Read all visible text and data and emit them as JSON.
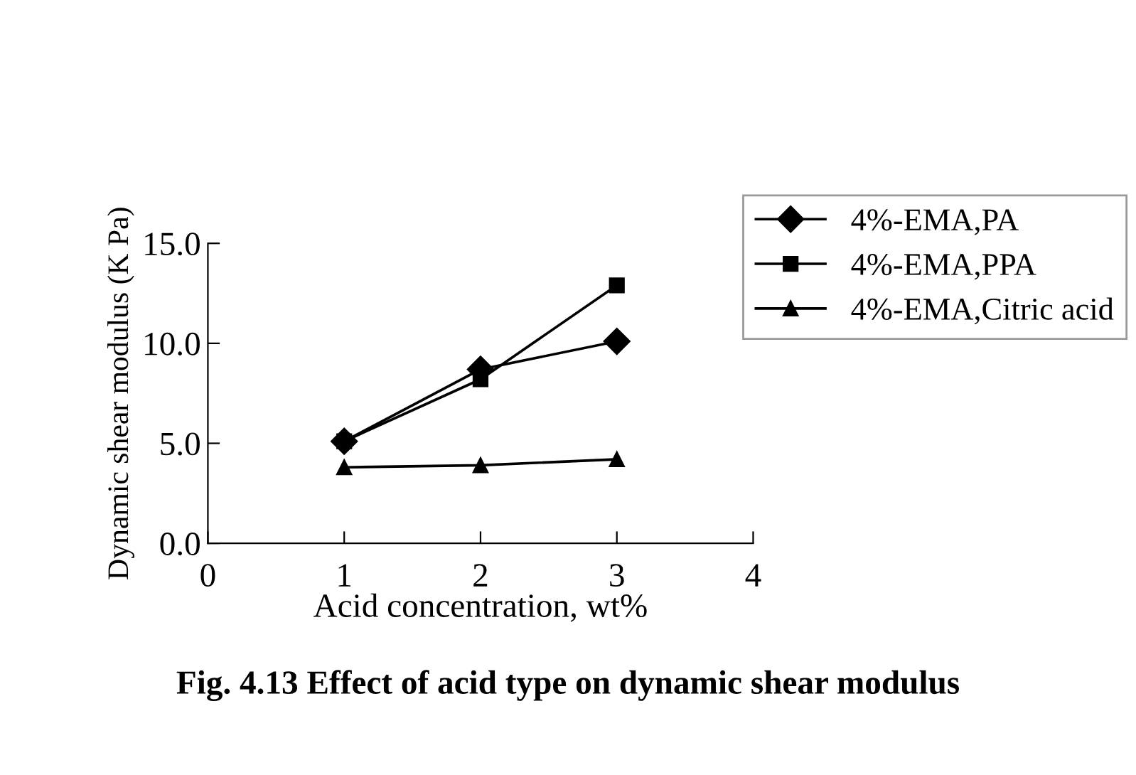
{
  "chart_data": {
    "type": "line",
    "title": "Fig. 4.13 Effect of acid type on dynamic shear modulus",
    "xlabel": "Acid concentration, wt%",
    "ylabel": "Dynamic shear modulus (K Pa)",
    "x": [
      1,
      2,
      3
    ],
    "series": [
      {
        "name": "4%-EMA,PA",
        "color": "#000000",
        "marker": "diamond",
        "values": [
          5.1,
          8.7,
          10.1
        ]
      },
      {
        "name": "4%-EMA,PPA",
        "color": "#000000",
        "marker": "square",
        "values": [
          5.1,
          8.2,
          12.9
        ]
      },
      {
        "name": "4%-EMA,Citric acid",
        "color": "#000000",
        "marker": "triangle",
        "values": [
          3.8,
          3.9,
          4.2
        ]
      }
    ],
    "xlim": [
      0,
      4
    ],
    "xticks": [
      0,
      1,
      2,
      3,
      4
    ],
    "ylim": [
      0,
      15
    ],
    "yticks": [
      {
        "value": 0,
        "label": "0.0"
      },
      {
        "value": 5,
        "label": "5.0"
      },
      {
        "value": 10,
        "label": "10.0"
      },
      {
        "value": 15,
        "label": "15.0"
      }
    ],
    "grid": false,
    "legend": "top right",
    "line_style": "solid"
  }
}
